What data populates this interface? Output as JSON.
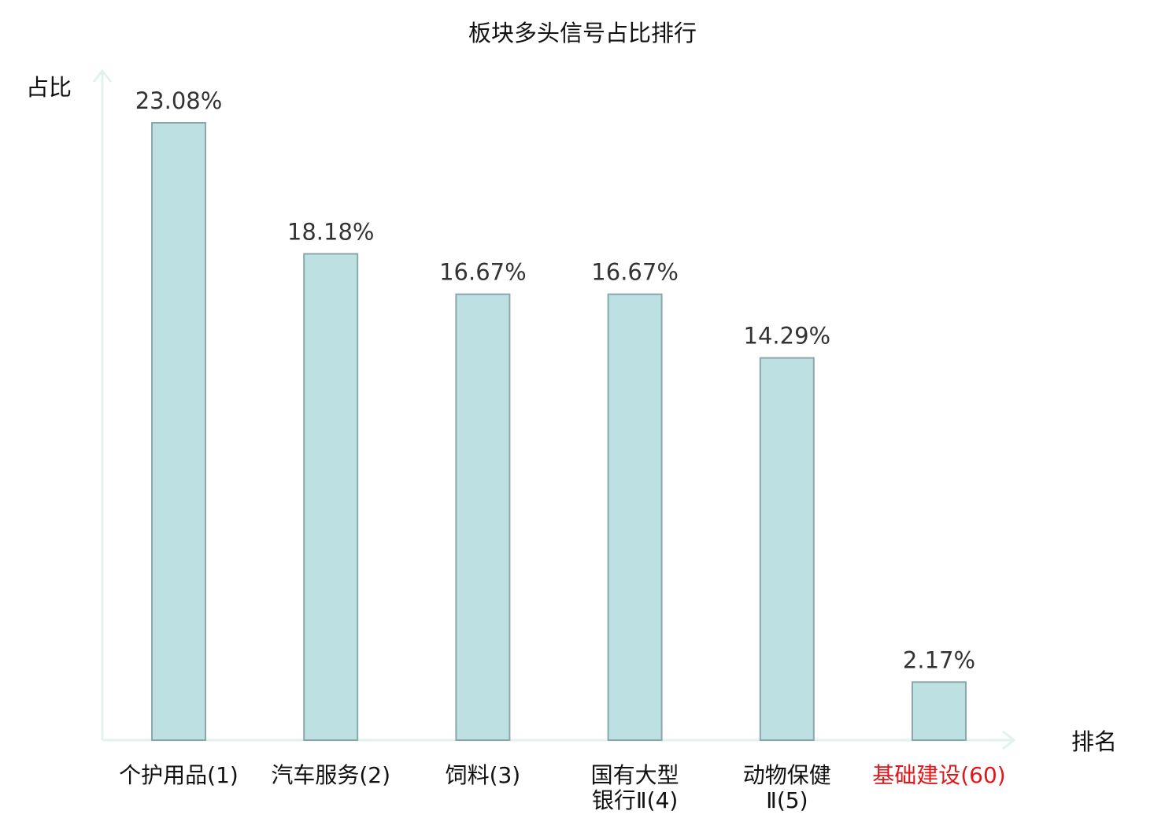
{
  "chart_data": {
    "type": "bar",
    "title": "板块多头信号占比排行",
    "ylabel": "占比",
    "xlabel": "排名",
    "categories": [
      [
        "个护用品(1)"
      ],
      [
        "汽车服务(2)"
      ],
      [
        "饲料(3)"
      ],
      [
        "国有大型",
        "银行Ⅱ(4)"
      ],
      [
        "动物保健",
        "Ⅱ(5)"
      ],
      [
        "基础建设(60)"
      ]
    ],
    "values": [
      23.08,
      18.18,
      16.67,
      16.67,
      14.29,
      2.17
    ],
    "value_labels": [
      "23.08%",
      "18.18%",
      "16.67%",
      "16.67%",
      "14.29%",
      "2.17%"
    ],
    "highlight_index": 5,
    "ylim": [
      0,
      23.08
    ],
    "grid": false,
    "colors": {
      "bar_fill": "#bde0e3",
      "bar_stroke": "#8aa7aa",
      "axis": "#e2f2ef",
      "text": "#333333",
      "highlight_text": "#e0161b"
    }
  }
}
